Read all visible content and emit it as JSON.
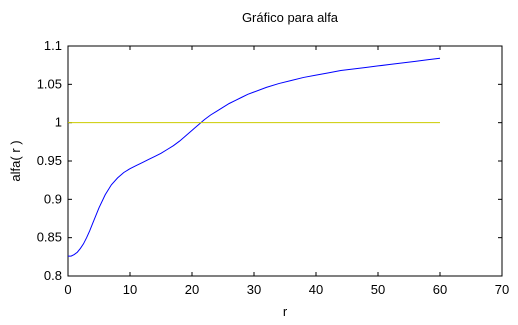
{
  "chart_data": {
    "type": "line",
    "title": "Gráfico para alfa",
    "xlabel": "r",
    "ylabel": "alfa( r )",
    "xlim": [
      0,
      70
    ],
    "ylim": [
      0.8,
      1.1
    ],
    "xticks": [
      0,
      10,
      20,
      30,
      40,
      50,
      60,
      70
    ],
    "yticks": [
      0.8,
      0.85,
      0.9,
      0.95,
      1,
      1.05,
      1.1
    ],
    "xtick_labels": [
      "0",
      "10",
      "20",
      "30",
      "40",
      "50",
      "60",
      "70"
    ],
    "ytick_labels": [
      "0.8",
      "0.85",
      "0.9",
      "0.95",
      "1",
      "1.05",
      "1.1"
    ],
    "grid": false,
    "series": [
      {
        "color": "#0000ff",
        "x": [
          0,
          0.5,
          1,
          1.5,
          2,
          2.5,
          3,
          3.5,
          4,
          5,
          6,
          7,
          8,
          9,
          10,
          11,
          12,
          13,
          14,
          15,
          16,
          17,
          18,
          19,
          20,
          21,
          22,
          23,
          24,
          25,
          26,
          27,
          28,
          29,
          30,
          32,
          34,
          36,
          38,
          40,
          42,
          44,
          46,
          48,
          50,
          52,
          54,
          56,
          58,
          60
        ],
        "y": [
          0.826,
          0.826,
          0.828,
          0.831,
          0.836,
          0.842,
          0.85,
          0.859,
          0.869,
          0.889,
          0.906,
          0.919,
          0.928,
          0.935,
          0.94,
          0.944,
          0.948,
          0.952,
          0.956,
          0.96,
          0.965,
          0.97,
          0.976,
          0.983,
          0.99,
          0.997,
          1.004,
          1.01,
          1.015,
          1.02,
          1.025,
          1.029,
          1.033,
          1.037,
          1.04,
          1.046,
          1.051,
          1.055,
          1.059,
          1.062,
          1.065,
          1.068,
          1.07,
          1.072,
          1.074,
          1.076,
          1.078,
          1.08,
          1.082,
          1.084
        ]
      },
      {
        "color": "#cccc00",
        "x": [
          0,
          60
        ],
        "y": [
          1,
          1
        ]
      }
    ]
  }
}
